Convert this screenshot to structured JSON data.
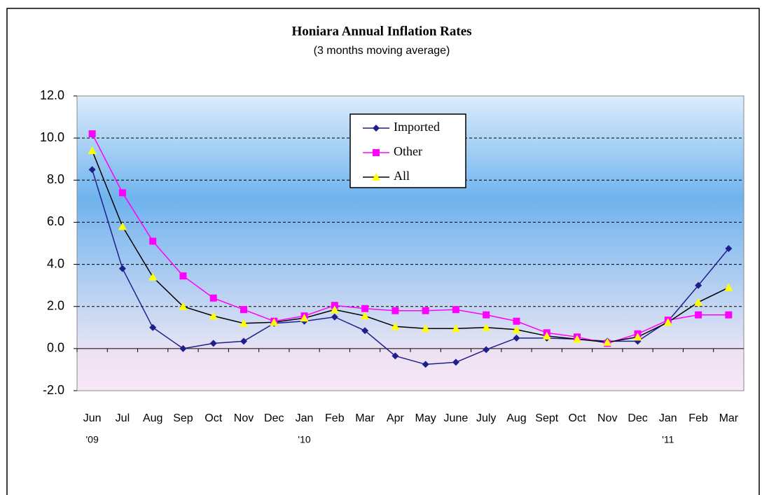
{
  "chart_data": {
    "type": "line",
    "title": "Honiara Annual Inflation Rates",
    "subtitle": "(3 months moving average)",
    "categories": [
      "Jun",
      "Jul",
      "Aug",
      "Sep",
      "Oct",
      "Nov",
      "Dec",
      "Jan",
      "Feb",
      "Mar",
      "Apr",
      "May",
      "June",
      "July",
      "Aug",
      "Sept",
      "Oct",
      "Nov",
      "Dec",
      "Jan",
      "Feb",
      "Mar"
    ],
    "category_years": [
      "'09",
      null,
      null,
      null,
      null,
      null,
      null,
      "'10",
      null,
      null,
      null,
      null,
      null,
      null,
      null,
      null,
      null,
      null,
      null,
      "'11",
      null,
      null
    ],
    "series": [
      {
        "name": "Imported",
        "color": "#1f1f8c",
        "line_color": "#1f1f8c",
        "marker": "diamond",
        "values": [
          8.5,
          3.8,
          1.0,
          0.0,
          0.25,
          0.35,
          1.2,
          1.3,
          1.5,
          0.85,
          -0.35,
          -0.75,
          -0.65,
          -0.05,
          0.5,
          0.5,
          0.45,
          0.35,
          0.35,
          1.3,
          3.0,
          4.75
        ]
      },
      {
        "name": "Other",
        "color": "#ff00ff",
        "line_color": "#ff00ff",
        "marker": "square",
        "values": [
          10.2,
          7.4,
          5.1,
          3.45,
          2.4,
          1.85,
          1.3,
          1.55,
          2.05,
          1.9,
          1.8,
          1.8,
          1.85,
          1.6,
          1.3,
          0.75,
          0.55,
          0.25,
          0.7,
          1.35,
          1.6,
          1.6
        ]
      },
      {
        "name": "All",
        "color": "#ffff00",
        "line_color": "#000000",
        "marker": "triangle",
        "values": [
          9.4,
          5.8,
          3.4,
          2.0,
          1.55,
          1.2,
          1.25,
          1.45,
          1.85,
          1.55,
          1.05,
          0.95,
          0.95,
          1.0,
          0.9,
          0.6,
          0.45,
          0.3,
          0.55,
          1.25,
          2.2,
          2.9
        ]
      }
    ],
    "ylim": [
      -2,
      12
    ],
    "yticks": [
      {
        "value": -2,
        "label": "-2.0"
      },
      {
        "value": 0,
        "label": "0.0"
      },
      {
        "value": 2,
        "label": "2.0"
      },
      {
        "value": 4,
        "label": "4.0"
      },
      {
        "value": 6,
        "label": "6.0"
      },
      {
        "value": 8,
        "label": "8.0"
      },
      {
        "value": 10,
        "label": "10.0"
      },
      {
        "value": 12,
        "label": "12.0"
      }
    ],
    "grid": true
  }
}
